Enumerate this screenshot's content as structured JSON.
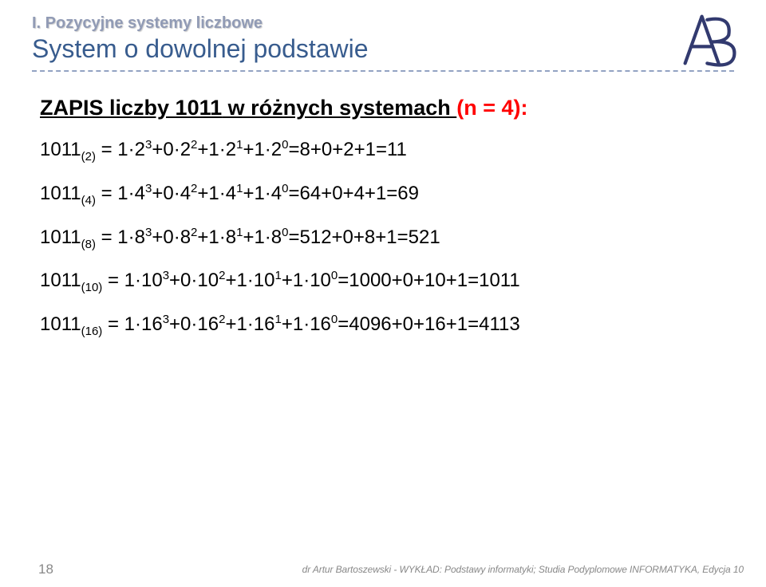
{
  "header": {
    "category": "I. Pozycyjne systemy liczbowe",
    "title": "System o dowolnej podstawie"
  },
  "heading": {
    "prefix": "ZAPIS liczby ",
    "number": "1011",
    "middle": " w różnych systemach ",
    "suffix": "(n = 4):"
  },
  "equations": [
    {
      "base": "(2)",
      "rhs": "=8+0+2+1=11",
      "terms": [
        "1·2",
        "+0·2",
        "+1·2",
        "+1·2"
      ],
      "exps": [
        "3",
        "2",
        "1",
        "0"
      ]
    },
    {
      "base": "(4)",
      "rhs": "=64+0+4+1=69",
      "terms": [
        "1·4",
        "+0·4",
        "+1·4",
        "+1·4"
      ],
      "exps": [
        "3",
        "2",
        "1",
        "0"
      ]
    },
    {
      "base": "(8)",
      "rhs": "=512+0+8+1=521",
      "terms": [
        "1·8",
        "+0·8",
        "+1·8",
        "+1·8"
      ],
      "exps": [
        "3",
        "2",
        "1",
        "0"
      ]
    },
    {
      "base": "(10)",
      "rhs": "=1000+0+10+1=1011",
      "terms": [
        "1·10",
        "+0·10",
        "+1·10",
        "+1·10"
      ],
      "exps": [
        "3",
        "2",
        "1",
        "0"
      ]
    },
    {
      "base": "(16)",
      "rhs": "=4096+0+16+1=4113",
      "terms": [
        "1·16",
        "+0·16",
        "+1·16",
        "+1·16"
      ],
      "exps": [
        "3",
        "2",
        "1",
        "0"
      ]
    }
  ],
  "value1011": "1011",
  "eqsign": " = ",
  "footer": {
    "page": "18",
    "text": "dr Artur Bartoszewski - WYKŁAD: Podstawy informatyki; Studia Podyplomowe INFORMATYKA, Edycja 10"
  },
  "colors": {
    "category": "#919bb5",
    "title": "#385c8e",
    "divider": "#93a3c3",
    "n4": "#ff0000",
    "logoStroke": "#323a6f"
  }
}
